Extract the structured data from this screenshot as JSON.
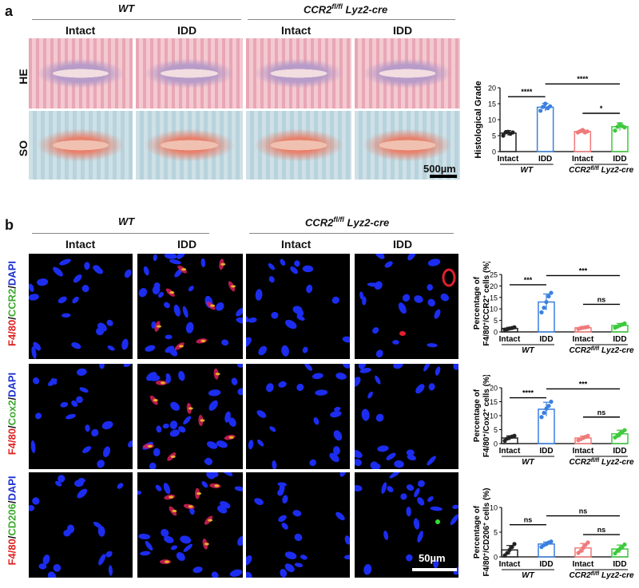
{
  "panel_a": {
    "letter": "a",
    "group_wt": "WT",
    "group_ccr2": "CCR2fl/fl Lyz2-cre",
    "group_ccr2_base": "CCR2",
    "group_ccr2_sup": "fl/fl",
    "group_ccr2_tail": " Lyz2-cre",
    "conditions": [
      "Intact",
      "IDD",
      "Intact",
      "IDD"
    ],
    "row_he": "HE",
    "row_so": "SO",
    "scale_bar": "500µm"
  },
  "panel_b": {
    "letter": "b",
    "group_wt": "WT",
    "group_ccr2": "CCR2fl/fl Lyz2-cre",
    "group_ccr2_base": "CCR2",
    "group_ccr2_sup": "fl/fl",
    "group_ccr2_tail": " Lyz2-cre",
    "conditions": [
      "Intact",
      "IDD",
      "Intact",
      "IDD"
    ],
    "rows": [
      {
        "p1": "F4/80",
        "sep": "/",
        "p2": "CCR2",
        "p3": "DAPI",
        "c2": "#3caa2c"
      },
      {
        "p1": "F4/80",
        "sep": "/",
        "p2": "Cox2",
        "p3": "DAPI",
        "c2": "#3caa2c"
      },
      {
        "p1": "F4/80",
        "sep": "/",
        "p2": "CD206",
        "p3": "DAPI",
        "c2": "#3caa2c"
      }
    ],
    "scale_bar": "50µm"
  },
  "colors": {
    "black": "#222222",
    "blue": "#3a7fe0",
    "red": "#f07a7a",
    "green": "#3ec93e",
    "sig": "#000000"
  },
  "chart_data": [
    {
      "type": "bar",
      "ylabel": "Histological Grade",
      "ylim": [
        0,
        20
      ],
      "yticks": [
        0,
        5,
        10,
        15,
        20
      ],
      "categories": [
        "Intact",
        "IDD",
        "Intact",
        "IDD"
      ],
      "groups": [
        "WT",
        "CCR2fl/fl Lyz2-cre"
      ],
      "values": [
        5.8,
        13.9,
        6.3,
        7.8
      ],
      "errors": [
        0.8,
        1.2,
        0.5,
        1.2
      ],
      "points": [
        [
          5.0,
          6.0,
          6.2,
          5.6,
          6.0
        ],
        [
          12.8,
          14.0,
          15.0,
          13.6,
          14.2
        ],
        [
          6.0,
          6.4,
          6.8,
          6.0,
          6.3
        ],
        [
          6.6,
          7.8,
          8.6,
          8.0,
          7.6
        ]
      ],
      "significance": [
        {
          "from": 0,
          "to": 1,
          "label": "****"
        },
        {
          "from": 1,
          "to": 3,
          "label": "****"
        },
        {
          "from": 2,
          "to": 3,
          "label": "*"
        }
      ]
    },
    {
      "type": "bar",
      "ylabel_line1": "Percentage of",
      "ylabel_line2_base": "F4/80",
      "ylabel_line2_mid": "/CCR2",
      "ylabel_line2_tail": " cells (%)",
      "ylim": [
        0,
        25
      ],
      "yticks": [
        0,
        5,
        10,
        15,
        20,
        25
      ],
      "categories": [
        "Intact",
        "IDD",
        "Intact",
        "IDD"
      ],
      "groups": [
        "WT",
        "CCR2fl/fl Lyz2-cre"
      ],
      "values": [
        1.5,
        13.0,
        1.8,
        2.8
      ],
      "errors": [
        0.5,
        3.5,
        0.6,
        0.9
      ],
      "points": [
        [
          1.0,
          1.2,
          1.5,
          1.7,
          2.0
        ],
        [
          8.5,
          10.5,
          13.0,
          15.5,
          17.0
        ],
        [
          1.3,
          1.6,
          1.8,
          2.0,
          2.2
        ],
        [
          1.8,
          2.3,
          2.8,
          3.2,
          3.7
        ]
      ],
      "significance": [
        {
          "from": 0,
          "to": 1,
          "label": "***"
        },
        {
          "from": 1,
          "to": 3,
          "label": "***"
        },
        {
          "from": 2,
          "to": 3,
          "label": "ns"
        }
      ]
    },
    {
      "type": "bar",
      "ylabel_line1": "Percentage of",
      "ylabel_line2_base": "F4/80",
      "ylabel_line2_mid": "/Cox2",
      "ylabel_line2_tail": " cells (%)",
      "ylim": [
        0,
        20
      ],
      "yticks": [
        0,
        5,
        10,
        15,
        20
      ],
      "categories": [
        "Intact",
        "IDD",
        "Intact",
        "IDD"
      ],
      "groups": [
        "WT",
        "CCR2fl/fl Lyz2-cre"
      ],
      "values": [
        2.0,
        12.3,
        2.0,
        3.5
      ],
      "errors": [
        0.8,
        2.5,
        0.7,
        1.3
      ],
      "points": [
        [
          1.0,
          1.8,
          2.2,
          2.5,
          2.8
        ],
        [
          9.5,
          11.0,
          12.5,
          13.5,
          15.0
        ],
        [
          1.2,
          1.6,
          2.0,
          2.4,
          2.8
        ],
        [
          2.2,
          2.8,
          3.5,
          4.2,
          4.8
        ]
      ],
      "significance": [
        {
          "from": 0,
          "to": 1,
          "label": "****"
        },
        {
          "from": 1,
          "to": 3,
          "label": "***"
        },
        {
          "from": 2,
          "to": 3,
          "label": "ns"
        }
      ]
    },
    {
      "type": "bar",
      "ylabel_line1": "Percentage of",
      "ylabel_line2_base": "F4/80",
      "ylabel_line2_mid": "/CD206",
      "ylabel_line2_tail": " cells (%)",
      "ylim": [
        0,
        10
      ],
      "yticks": [
        0,
        5,
        10
      ],
      "categories": [
        "Intact",
        "IDD",
        "Intact",
        "IDD"
      ],
      "groups": [
        "WT",
        "CCR2fl/fl Lyz2-cre"
      ],
      "values": [
        1.4,
        2.6,
        1.8,
        1.6
      ],
      "errors": [
        0.9,
        0.4,
        0.9,
        0.8
      ],
      "points": [
        [
          0.3,
          0.8,
          1.4,
          2.0,
          2.6
        ],
        [
          2.0,
          2.4,
          2.6,
          2.9,
          3.1
        ],
        [
          0.8,
          1.2,
          1.8,
          2.4,
          2.9
        ],
        [
          0.7,
          1.2,
          1.6,
          2.0,
          2.5
        ]
      ],
      "significance": [
        {
          "from": 0,
          "to": 1,
          "label": "ns"
        },
        {
          "from": 1,
          "to": 3,
          "label": "ns"
        },
        {
          "from": 2,
          "to": 3,
          "label": "ns"
        }
      ]
    }
  ]
}
